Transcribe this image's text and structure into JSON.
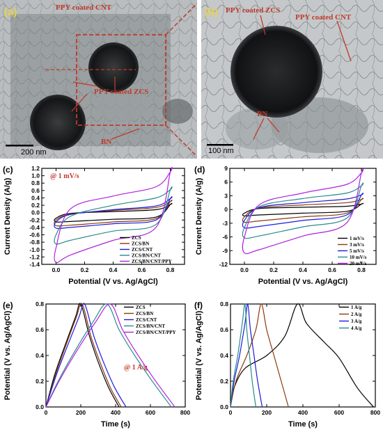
{
  "figure": {
    "tem_a": {
      "letter": "(a)",
      "labels": [
        "PPY coated CNT",
        "PPY coated ZCS",
        "BN"
      ],
      "scale": "200 nm"
    },
    "tem_b": {
      "letter": "(b)",
      "labels": [
        "PPY coated ZCS",
        "PPY coated CNT",
        "BN"
      ],
      "scale": "100 nm"
    }
  },
  "chart_data": [
    {
      "id": "c",
      "letter": "(c)",
      "type": "line",
      "subtype": "cyclic-voltammetry",
      "xlabel": "Potential (V vs. Ag/AgCl)",
      "ylabel": "Current Density (A/g)",
      "annotation": "@ 1 mV/s",
      "xlim": [
        -0.1,
        0.9
      ],
      "ylim": [
        -1.4,
        1.2
      ],
      "xticks": [
        0.0,
        0.2,
        0.4,
        0.6,
        0.8
      ],
      "yticks": [
        -1.4,
        -1.2,
        -1.0,
        -0.8,
        -0.6,
        -0.4,
        -0.2,
        0.0,
        0.2,
        0.4,
        0.6,
        0.8,
        1.0,
        1.2
      ],
      "legend": "bottom-right",
      "series": [
        {
          "name": "ZCS",
          "color": "#000000",
          "top": [
            [
              0,
              -0.15
            ],
            [
              0.1,
              -0.02
            ],
            [
              0.4,
              0.03
            ],
            [
              0.7,
              0.08
            ],
            [
              0.8,
              0.22
            ]
          ],
          "bottom": [
            [
              0,
              -0.25
            ],
            [
              0.1,
              -0.24
            ],
            [
              0.4,
              -0.18
            ],
            [
              0.7,
              -0.12
            ],
            [
              0.8,
              0.22
            ]
          ]
        },
        {
          "name": "ZCS/BN",
          "color": "#8b3a0e",
          "top": [
            [
              0,
              -0.2
            ],
            [
              0.1,
              -0.04
            ],
            [
              0.4,
              0.06
            ],
            [
              0.7,
              0.14
            ],
            [
              0.8,
              0.3
            ]
          ],
          "bottom": [
            [
              0,
              -0.35
            ],
            [
              0.1,
              -0.34
            ],
            [
              0.4,
              -0.25
            ],
            [
              0.7,
              -0.16
            ],
            [
              0.8,
              0.3
            ]
          ]
        },
        {
          "name": "ZCS/CNT",
          "color": "#1a1adc",
          "top": [
            [
              0,
              -0.25
            ],
            [
              0.1,
              -0.05
            ],
            [
              0.4,
              0.08
            ],
            [
              0.7,
              0.18
            ],
            [
              0.8,
              0.38
            ]
          ],
          "bottom": [
            [
              0,
              -0.42
            ],
            [
              0.1,
              -0.4
            ],
            [
              0.4,
              -0.3
            ],
            [
              0.7,
              -0.2
            ],
            [
              0.8,
              0.38
            ]
          ]
        },
        {
          "name": "ZCS/BN/CNT",
          "color": "#2a8a8a",
          "top": [
            [
              0,
              -0.6
            ],
            [
              0.1,
              -0.1
            ],
            [
              0.4,
              0.2
            ],
            [
              0.7,
              0.4
            ],
            [
              0.8,
              0.62
            ]
          ],
          "bottom": [
            [
              0,
              -0.85
            ],
            [
              0.1,
              -0.75
            ],
            [
              0.4,
              -0.5
            ],
            [
              0.7,
              -0.32
            ],
            [
              0.8,
              0.62
            ]
          ]
        },
        {
          "name": "ZCS/BN/CNT/PPY",
          "color": "#b020e0",
          "top": [
            [
              0,
              -0.95
            ],
            [
              0.1,
              0.1
            ],
            [
              0.4,
              0.45
            ],
            [
              0.7,
              0.7
            ],
            [
              0.8,
              1.1
            ]
          ],
          "bottom": [
            [
              0,
              -1.35
            ],
            [
              0.1,
              -1.15
            ],
            [
              0.4,
              -0.75
            ],
            [
              0.7,
              -0.4
            ],
            [
              0.8,
              1.1
            ]
          ]
        }
      ]
    },
    {
      "id": "d",
      "letter": "(d)",
      "type": "line",
      "subtype": "cyclic-voltammetry",
      "xlabel": "Potential (V vs. Ag/AgCl)",
      "ylabel": "Current Density (A/g)",
      "xlim": [
        -0.1,
        0.9
      ],
      "ylim": [
        -12,
        9
      ],
      "xticks": [
        0.0,
        0.2,
        0.4,
        0.6,
        0.8
      ],
      "yticks": [
        -12,
        -9,
        -6,
        -3,
        0,
        3,
        6,
        9
      ],
      "legend": "bottom-right",
      "series": [
        {
          "name": "1 mV/s",
          "color": "#000000",
          "top": [
            [
              0,
              -0.8
            ],
            [
              0.1,
              0.2
            ],
            [
              0.4,
              0.5
            ],
            [
              0.7,
              0.7
            ],
            [
              0.8,
              1.2
            ]
          ],
          "bottom": [
            [
              0,
              -1.4
            ],
            [
              0.1,
              -1.2
            ],
            [
              0.4,
              -0.8
            ],
            [
              0.7,
              -0.4
            ],
            [
              0.8,
              1.2
            ]
          ]
        },
        {
          "name": "3 mV/s",
          "color": "#8b3a0e",
          "top": [
            [
              0,
              -1.6
            ],
            [
              0.1,
              0.3
            ],
            [
              0.4,
              1.0
            ],
            [
              0.7,
              1.5
            ],
            [
              0.8,
              2.2
            ]
          ],
          "bottom": [
            [
              0,
              -2.8
            ],
            [
              0.1,
              -2.5
            ],
            [
              0.4,
              -1.6
            ],
            [
              0.7,
              -0.8
            ],
            [
              0.8,
              2.2
            ]
          ]
        },
        {
          "name": "5 mV/s",
          "color": "#1a1adc",
          "top": [
            [
              0,
              -2.4
            ],
            [
              0.1,
              0.4
            ],
            [
              0.4,
              1.5
            ],
            [
              0.7,
              2.3
            ],
            [
              0.8,
              3.2
            ]
          ],
          "bottom": [
            [
              0,
              -4.0
            ],
            [
              0.1,
              -3.7
            ],
            [
              0.4,
              -2.4
            ],
            [
              0.7,
              -1.2
            ],
            [
              0.8,
              3.2
            ]
          ]
        },
        {
          "name": "10 mV/s",
          "color": "#2a8a8a",
          "top": [
            [
              0,
              -4.0
            ],
            [
              0.1,
              0.6
            ],
            [
              0.4,
              2.4
            ],
            [
              0.7,
              3.6
            ],
            [
              0.8,
              5.2
            ]
          ],
          "bottom": [
            [
              0,
              -6.2
            ],
            [
              0.1,
              -5.8
            ],
            [
              0.4,
              -3.8
            ],
            [
              0.7,
              -1.9
            ],
            [
              0.8,
              5.2
            ]
          ]
        },
        {
          "name": "20 mV/s",
          "color": "#b020e0",
          "top": [
            [
              0,
              -6.0
            ],
            [
              0.1,
              1.0
            ],
            [
              0.4,
              3.6
            ],
            [
              0.7,
              5.5
            ],
            [
              0.8,
              8.0
            ]
          ],
          "bottom": [
            [
              0,
              -9.5
            ],
            [
              0.1,
              -8.8
            ],
            [
              0.4,
              -5.8
            ],
            [
              0.7,
              -2.9
            ],
            [
              0.8,
              8.0
            ]
          ]
        }
      ]
    },
    {
      "id": "e",
      "letter": "(e)",
      "type": "line",
      "subtype": "galvanostatic-charge-discharge",
      "xlabel": "Time (s)",
      "ylabel": "Potential (V vs. Ag/AgCl)",
      "annotation": "@ 1 A/g",
      "xlim": [
        0,
        800
      ],
      "ylim": [
        0,
        0.8
      ],
      "xticks": [
        0,
        200,
        400,
        600,
        800
      ],
      "yticks": [
        0.0,
        0.2,
        0.4,
        0.6,
        0.8
      ],
      "legend": "top-right",
      "series": [
        {
          "name": "ZCS",
          "color": "#000000",
          "points": [
            [
              0,
              0
            ],
            [
              50,
              0.25
            ],
            [
              110,
              0.48
            ],
            [
              170,
              0.7
            ],
            [
              200,
              0.8
            ],
            [
              250,
              0.55
            ],
            [
              300,
              0.35
            ],
            [
              360,
              0.15
            ],
            [
              420,
              0
            ]
          ]
        },
        {
          "name": "ZCS/BN",
          "color": "#8b3a0e",
          "points": [
            [
              0,
              0
            ],
            [
              55,
              0.25
            ],
            [
              115,
              0.48
            ],
            [
              175,
              0.7
            ],
            [
              208,
              0.8
            ],
            [
              258,
              0.55
            ],
            [
              310,
              0.35
            ],
            [
              370,
              0.15
            ],
            [
              432,
              0
            ]
          ]
        },
        {
          "name": "ZCS/CNT",
          "color": "#1a1adc",
          "points": [
            [
              0,
              0
            ],
            [
              60,
              0.25
            ],
            [
              125,
              0.48
            ],
            [
              190,
              0.7
            ],
            [
              222,
              0.8
            ],
            [
              275,
              0.55
            ],
            [
              330,
              0.35
            ],
            [
              395,
              0.15
            ],
            [
              460,
              0
            ]
          ]
        },
        {
          "name": "ZCS/BN/CNT",
          "color": "#2a8a8a",
          "points": [
            [
              0,
              0
            ],
            [
              70,
              0.2
            ],
            [
              160,
              0.42
            ],
            [
              270,
              0.66
            ],
            [
              350,
              0.8
            ],
            [
              420,
              0.6
            ],
            [
              500,
              0.42
            ],
            [
              600,
              0.22
            ],
            [
              720,
              0
            ]
          ]
        },
        {
          "name": "ZCS/BN/CNT/PPY",
          "color": "#b020e0",
          "points": [
            [
              0,
              0
            ],
            [
              75,
              0.2
            ],
            [
              170,
              0.42
            ],
            [
              285,
              0.66
            ],
            [
              370,
              0.8
            ],
            [
              440,
              0.6
            ],
            [
              520,
              0.42
            ],
            [
              620,
              0.22
            ],
            [
              740,
              0
            ]
          ]
        }
      ]
    },
    {
      "id": "f",
      "letter": "(f)",
      "type": "line",
      "subtype": "galvanostatic-charge-discharge",
      "xlabel": "Time (s)",
      "ylabel": "Potential (V vs. Ag/AgCl)",
      "xlim": [
        0,
        800
      ],
      "ylim": [
        0,
        0.8
      ],
      "xticks": [
        0,
        200,
        400,
        600,
        800
      ],
      "yticks": [
        0.0,
        0.2,
        0.4,
        0.6,
        0.8
      ],
      "legend": "top-right",
      "series": [
        {
          "name": "1 A/g",
          "color": "#000000",
          "points": [
            [
              0,
              0
            ],
            [
              20,
              0.15
            ],
            [
              80,
              0.3
            ],
            [
              200,
              0.4
            ],
            [
              300,
              0.55
            ],
            [
              370,
              0.8
            ],
            [
              420,
              0.65
            ],
            [
              520,
              0.5
            ],
            [
              600,
              0.38
            ],
            [
              700,
              0.15
            ],
            [
              790,
              0
            ]
          ]
        },
        {
          "name": "2 A/g",
          "color": "#8b3a0e",
          "points": [
            [
              0,
              0
            ],
            [
              30,
              0.2
            ],
            [
              90,
              0.4
            ],
            [
              140,
              0.6
            ],
            [
              170,
              0.8
            ],
            [
              200,
              0.6
            ],
            [
              240,
              0.4
            ],
            [
              280,
              0.2
            ],
            [
              320,
              0
            ]
          ]
        },
        {
          "name": "3 A/g",
          "color": "#1a1adc",
          "points": [
            [
              0,
              0
            ],
            [
              20,
              0.2
            ],
            [
              50,
              0.4
            ],
            [
              80,
              0.65
            ],
            [
              95,
              0.8
            ],
            [
              110,
              0.6
            ],
            [
              130,
              0.4
            ],
            [
              150,
              0.2
            ],
            [
              175,
              0
            ]
          ]
        },
        {
          "name": "4 A/g",
          "color": "#2a8a8a",
          "points": [
            [
              0,
              0
            ],
            [
              15,
              0.2
            ],
            [
              40,
              0.4
            ],
            [
              65,
              0.65
            ],
            [
              80,
              0.8
            ],
            [
              90,
              0.6
            ],
            [
              105,
              0.4
            ],
            [
              120,
              0.2
            ],
            [
              140,
              0
            ]
          ]
        }
      ]
    }
  ]
}
